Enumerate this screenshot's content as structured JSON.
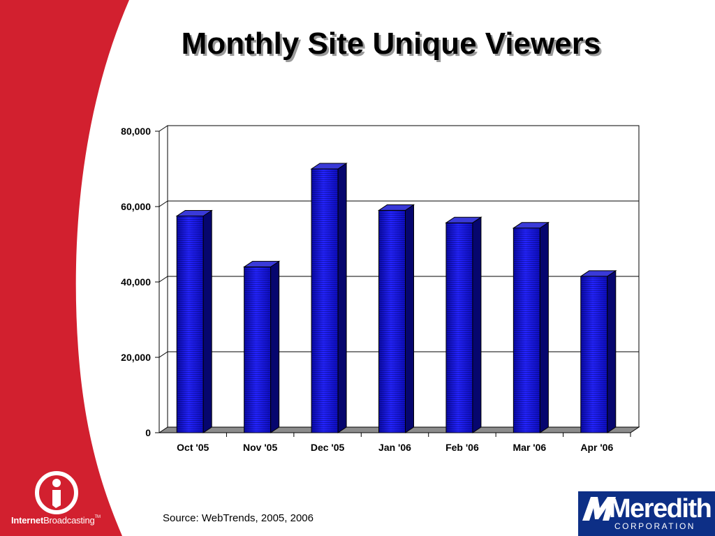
{
  "slide": {
    "title": "Monthly Site Unique Viewers",
    "source_note": "Source: WebTrends, 2005, 2006"
  },
  "branding": {
    "left_logo_bold": "Internet",
    "left_logo_regular": "Broadcasting",
    "left_logo_tm": "TM",
    "right_logo_word": "Meredith",
    "right_logo_sub": "CORPORATION",
    "colors": {
      "sidebar_red": "#d2202f",
      "meredith_blue": "#0d2f86",
      "bar_blue": "#1a1ae6"
    }
  },
  "chart_data": {
    "type": "bar",
    "categories": [
      "Oct '05",
      "Nov '05",
      "Dec '05",
      "Jan '06",
      "Feb '06",
      "Mar '06",
      "Apr '06"
    ],
    "values": [
      57500,
      44000,
      70000,
      59000,
      55700,
      54300,
      41500
    ],
    "yticks": [
      "0",
      "20,000",
      "40,000",
      "60,000",
      "80,000"
    ],
    "ylim": [
      0,
      80000
    ],
    "grid": true,
    "title": "",
    "xlabel": "",
    "ylabel": ""
  }
}
